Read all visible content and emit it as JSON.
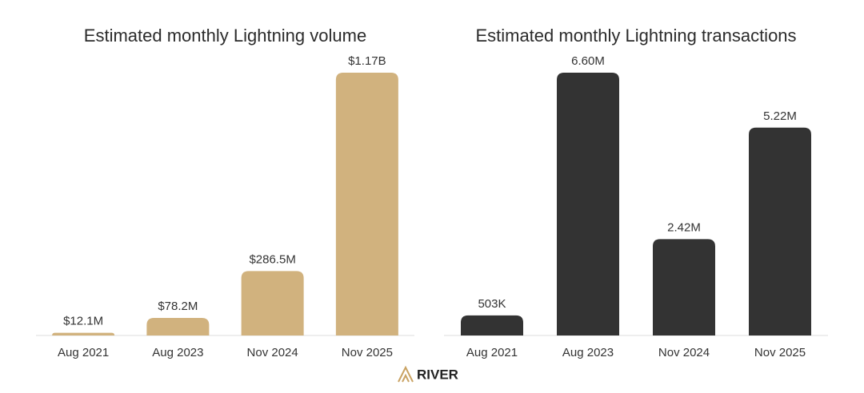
{
  "chart_data": [
    {
      "type": "bar",
      "title": "Estimated monthly Lightning volume",
      "categories": [
        "Aug 2021",
        "Aug 2023",
        "Nov 2024",
        "Nov 2025"
      ],
      "values": [
        12100000,
        78200000,
        286500000,
        1170000000
      ],
      "value_labels": [
        "$12.1M",
        "$78.2M",
        "$286.5M",
        "$1.17B"
      ],
      "color": "#d1b27e"
    },
    {
      "type": "bar",
      "title": "Estimated monthly Lightning transactions",
      "categories": [
        "Aug 2021",
        "Aug 2023",
        "Nov 2024",
        "Nov 2025"
      ],
      "values": [
        503000,
        6600000,
        2420000,
        5220000
      ],
      "value_labels": [
        "503K",
        "6.60M",
        "2.42M",
        "5.22M"
      ],
      "color": "#333333"
    }
  ],
  "logo": "RIVER"
}
